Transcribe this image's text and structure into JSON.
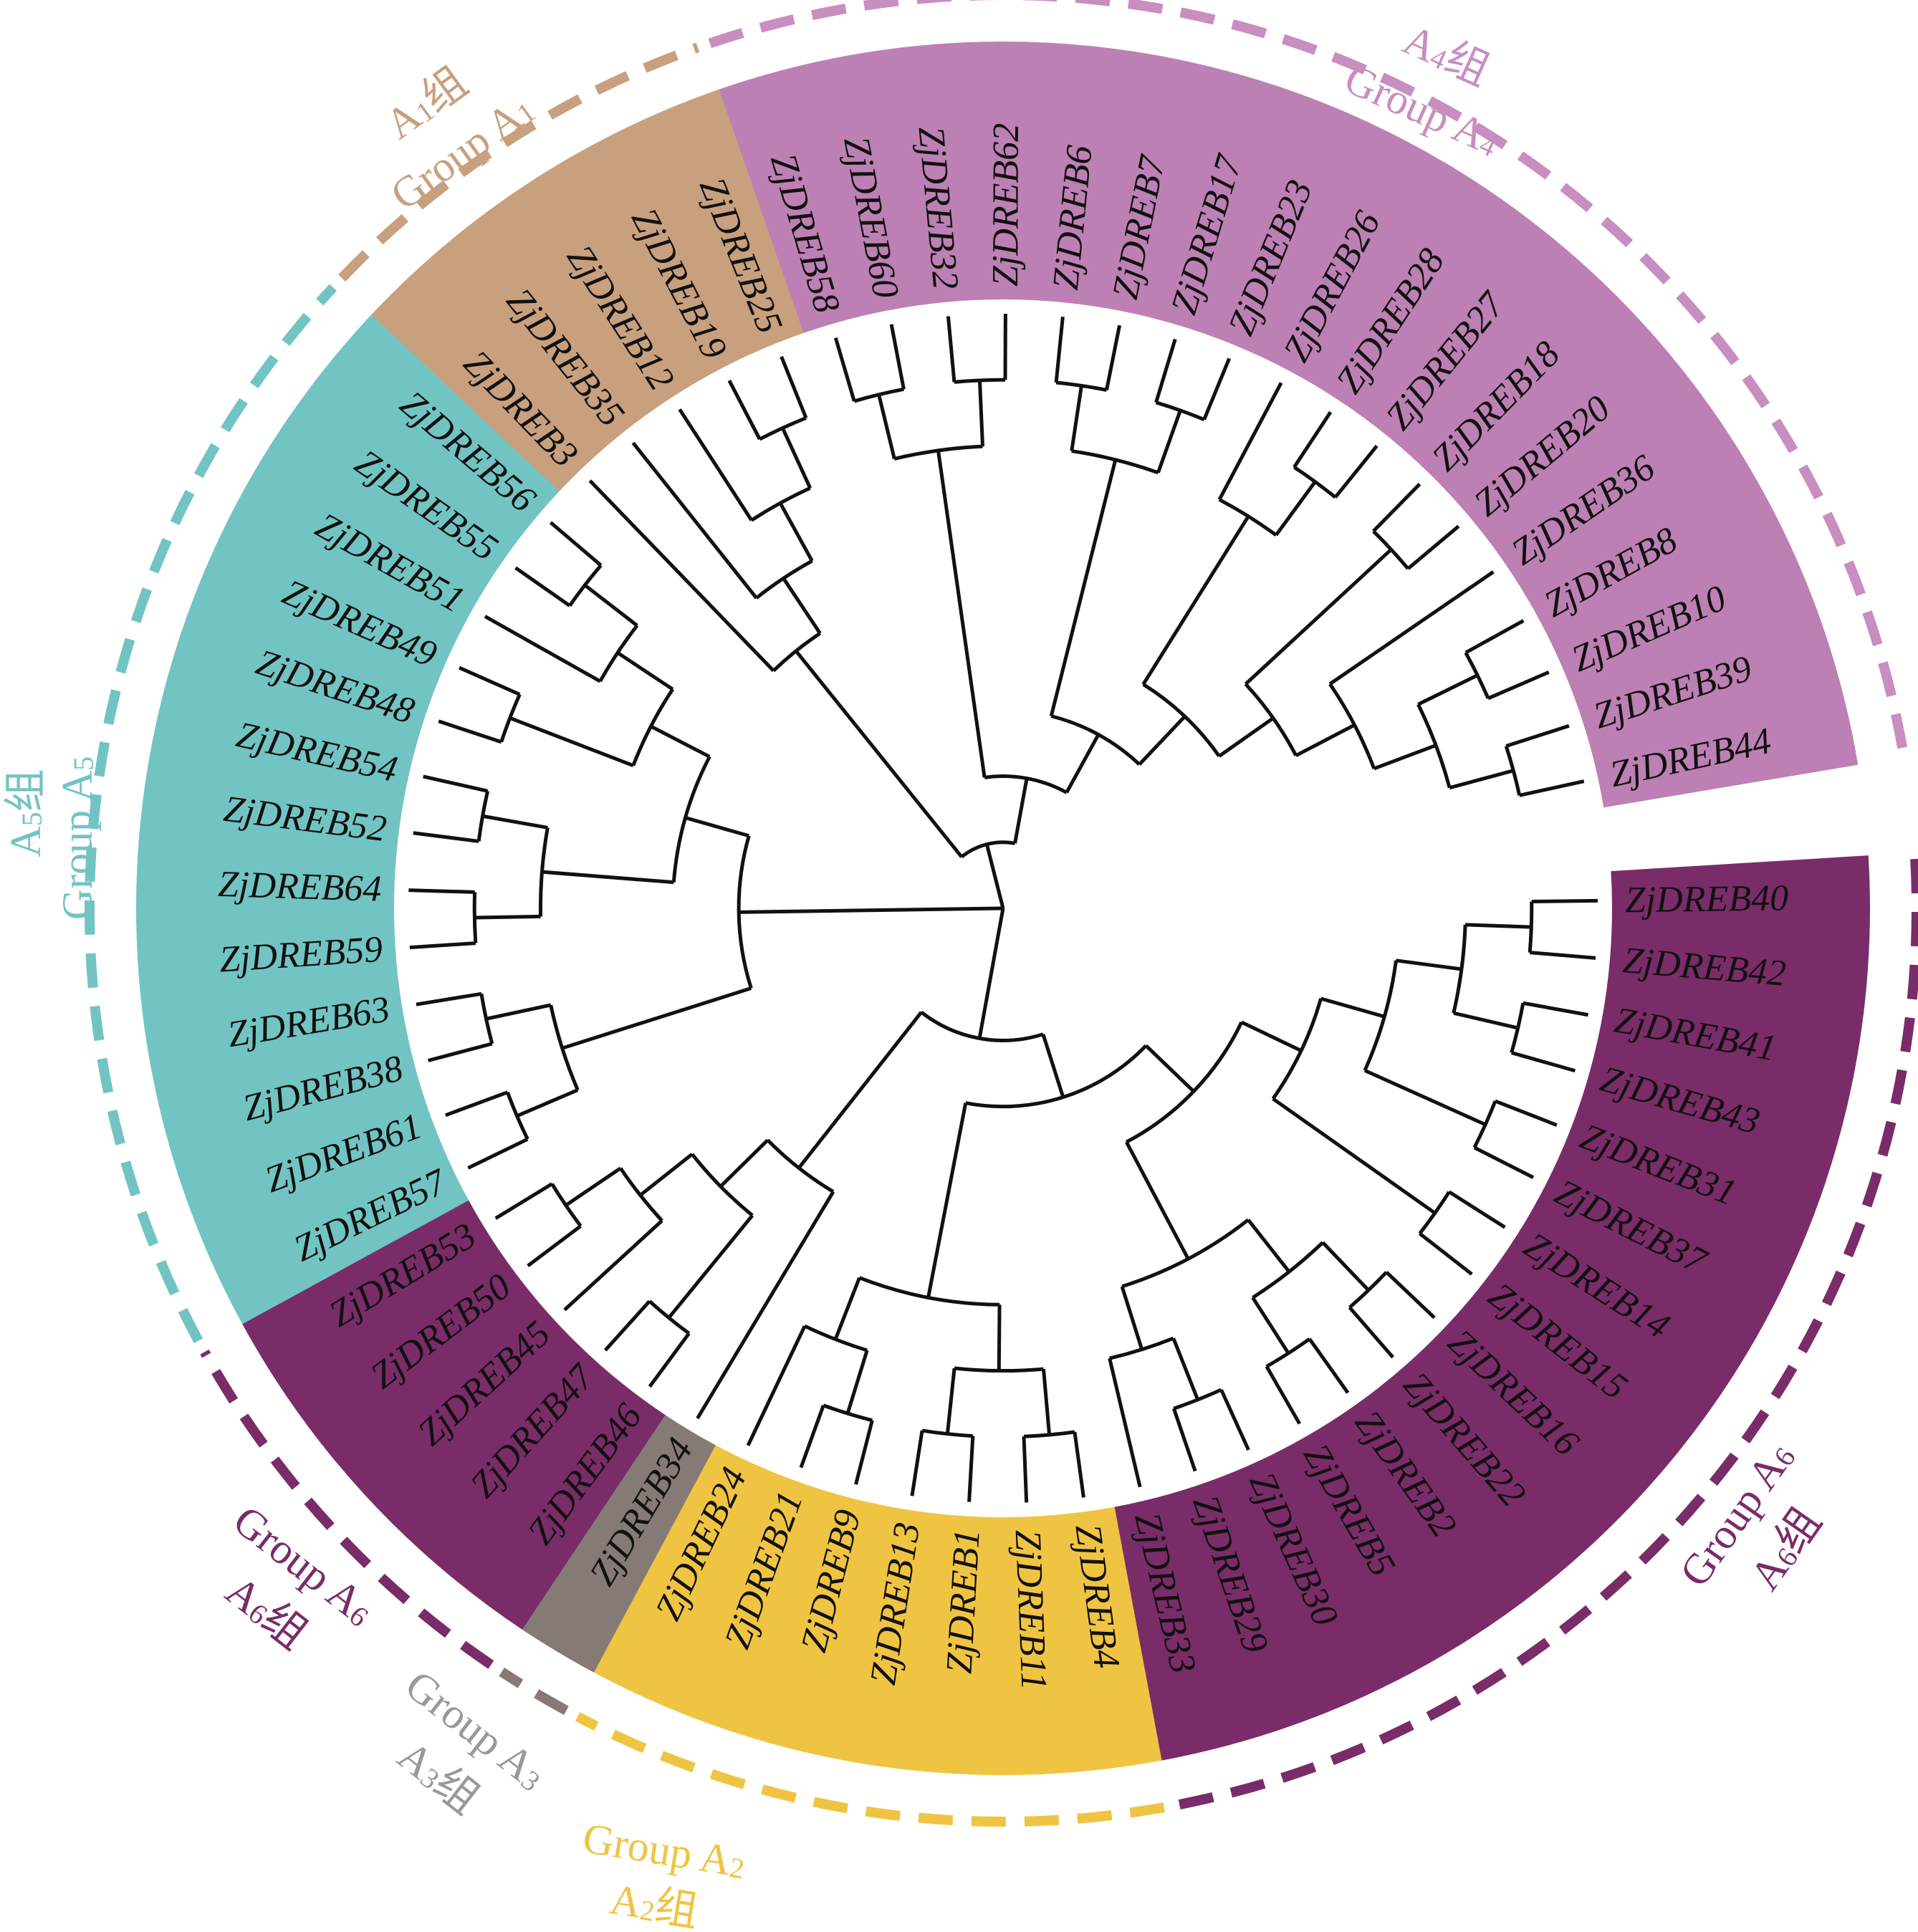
{
  "groups": {
    "A1": {
      "en": "Group A",
      "cn_prefix": "A",
      "num": "1",
      "cn_suffix": "组",
      "band": "#c8a07e",
      "dash": "#c8a07e",
      "text": "#c8a07e"
    },
    "A2": {
      "en": "Group A",
      "cn_prefix": "A",
      "num": "2",
      "cn_suffix": "组",
      "band": "#f0c443",
      "dash": "#f0c443",
      "text": "#f0c443"
    },
    "A3": {
      "en": "Group A",
      "cn_prefix": "A",
      "num": "3",
      "cn_suffix": "组",
      "band": "#857a75",
      "dash": "#857a75",
      "text": "#999999"
    },
    "A4": {
      "en": "Group A",
      "cn_prefix": "A",
      "num": "4",
      "cn_suffix": "组",
      "band": "#bd80b4",
      "dash": "#c88ec0",
      "text": "#c88ec0"
    },
    "A5": {
      "en": "Group A",
      "cn_prefix": "A",
      "num": "5",
      "cn_suffix": "组",
      "band": "#72c4c3",
      "dash": "#72c4c3",
      "text": "#72c4c3"
    },
    "A6": {
      "en": "Group A",
      "cn_prefix": "A",
      "num": "6",
      "cn_suffix": "组",
      "band": "#7a2c69",
      "dash": "#7a2c69",
      "text": "#7a2c69"
    }
  },
  "leaves": [
    {
      "name": "ZjDREB40",
      "group": "A6"
    },
    {
      "name": "ZjDREB42",
      "group": "A6"
    },
    {
      "name": "ZjDREB41",
      "group": "A6"
    },
    {
      "name": "ZjDREB43",
      "group": "A6"
    },
    {
      "name": "ZjDREB31",
      "group": "A6"
    },
    {
      "name": "ZjDREB37",
      "group": "A6"
    },
    {
      "name": "ZjDREB14",
      "group": "A6"
    },
    {
      "name": "ZjDREB15",
      "group": "A6"
    },
    {
      "name": "ZjDREB16",
      "group": "A6"
    },
    {
      "name": "ZjDREB22",
      "group": "A6"
    },
    {
      "name": "ZjDREB2",
      "group": "A6"
    },
    {
      "name": "ZjDREB5",
      "group": "A6"
    },
    {
      "name": "ZjDREB30",
      "group": "A6"
    },
    {
      "name": "ZjDREB29",
      "group": "A6"
    },
    {
      "name": "ZjDREB33",
      "group": "A6"
    },
    {
      "name": "ZjDREB4",
      "group": "A2"
    },
    {
      "name": "ZjDREB11",
      "group": "A2"
    },
    {
      "name": "ZjDREB1",
      "group": "A2"
    },
    {
      "name": "ZjDREB13",
      "group": "A2"
    },
    {
      "name": "ZjDREB9",
      "group": "A2"
    },
    {
      "name": "ZjDREB21",
      "group": "A2"
    },
    {
      "name": "ZjDREB24",
      "group": "A2"
    },
    {
      "name": "ZjDREB34",
      "group": "A3"
    },
    {
      "name": "ZjDREB46",
      "group": "A6"
    },
    {
      "name": "ZjDREB47",
      "group": "A6"
    },
    {
      "name": "ZjDREB45",
      "group": "A6"
    },
    {
      "name": "ZjDREB50",
      "group": "A6"
    },
    {
      "name": "ZjDREB53",
      "group": "A6"
    },
    {
      "name": "ZjDREB57",
      "group": "A5"
    },
    {
      "name": "ZjDREB61",
      "group": "A5"
    },
    {
      "name": "ZjDREB38",
      "group": "A5"
    },
    {
      "name": "ZjDREB63",
      "group": "A5"
    },
    {
      "name": "ZjDREB59",
      "group": "A5"
    },
    {
      "name": "ZjDREB64",
      "group": "A5"
    },
    {
      "name": "ZjDREB52",
      "group": "A5"
    },
    {
      "name": "ZjDREB54",
      "group": "A5"
    },
    {
      "name": "ZjDREB48",
      "group": "A5"
    },
    {
      "name": "ZjDREB49",
      "group": "A5"
    },
    {
      "name": "ZjDREB51",
      "group": "A5"
    },
    {
      "name": "ZjDREB55",
      "group": "A5"
    },
    {
      "name": "ZjDREB56",
      "group": "A5"
    },
    {
      "name": "ZjDREB3",
      "group": "A1"
    },
    {
      "name": "ZjDREB35",
      "group": "A1"
    },
    {
      "name": "ZjDREB12",
      "group": "A1"
    },
    {
      "name": "ZjDREB19",
      "group": "A1"
    },
    {
      "name": "ZjDREB25",
      "group": "A1"
    },
    {
      "name": "ZjDREB58",
      "group": "A4"
    },
    {
      "name": "ZjDREB60",
      "group": "A4"
    },
    {
      "name": "ZjDREB32",
      "group": "A4"
    },
    {
      "name": "ZjDREB62",
      "group": "A4"
    },
    {
      "name": "ZjDREB6",
      "group": "A4"
    },
    {
      "name": "ZjDREB7",
      "group": "A4"
    },
    {
      "name": "ZjDREB17",
      "group": "A4"
    },
    {
      "name": "ZjDREB23",
      "group": "A4"
    },
    {
      "name": "ZjDREB26",
      "group": "A4"
    },
    {
      "name": "ZjDREB28",
      "group": "A4"
    },
    {
      "name": "ZjDREB27",
      "group": "A4"
    },
    {
      "name": "ZjDREB18",
      "group": "A4"
    },
    {
      "name": "ZjDREB20",
      "group": "A4"
    },
    {
      "name": "ZjDREB36",
      "group": "A4"
    },
    {
      "name": "ZjDREB8",
      "group": "A4"
    },
    {
      "name": "ZjDREB10",
      "group": "A4"
    },
    {
      "name": "ZjDREB39",
      "group": "A4"
    },
    {
      "name": "ZjDREB44",
      "group": "A4"
    }
  ],
  "tree": [
    [
      [
        [
          [
            [
              [
                [
                  0,
                  1
                ],
                [
                  2,
                  3
                ]
              ],
              [
                4,
                5
              ]
            ],
            [
              6,
              7
            ]
          ],
          [
            [
              [
                8,
                9
              ],
              [
                10,
                11
              ]
            ],
            [
              [
                12,
                13
              ],
              14
            ]
          ]
        ],
        [
          [
            [
              15,
              16
            ],
            [
              17,
              18
            ]
          ],
          [
            [
              19,
              20
            ],
            21
          ]
        ]
      ],
      [
        22,
        [
          [
            23,
            24
          ],
          [
            25,
            [
              26,
              27
            ]
          ]
        ]
      ]
    ],
    [
      [
        [
          28,
          29
        ],
        [
          30,
          31
        ]
      ],
      [
        [
          [
            32,
            33
          ],
          [
            34,
            35
          ]
        ],
        [
          [
            36,
            37
          ],
          [
            38,
            [
              39,
              40
            ]
          ]
        ]
      ]
    ],
    [
      [
        41,
        [
          42,
          [
            43,
            [
              44,
              45
            ]
          ]
        ]
      ],
      [
        [
          [
            46,
            47
          ],
          [
            48,
            49
          ]
        ],
        [
          [
            [
              50,
              51
            ],
            [
              52,
              53
            ]
          ],
          [
            [
              54,
              [
                55,
                56
              ]
            ],
            [
              [
                57,
                58
              ],
              [
                59,
                [
                  [
                    60,
                    61
                  ],
                  [
                    62,
                    63
                  ]
                ]
              ]
            ]
          ]
        ]
      ]
    ]
  ],
  "dashed_segments": [
    {
      "group": "A6",
      "from": 0,
      "to": 14
    },
    {
      "group": "A2",
      "from": 15,
      "to": 21
    },
    {
      "group": "A3",
      "from": 22,
      "to": 22
    },
    {
      "group": "A6",
      "from": 23,
      "to": 27
    },
    {
      "group": "A5",
      "from": 28,
      "to": 40
    },
    {
      "group": "A1",
      "from": 41,
      "to": 45
    },
    {
      "group": "A4",
      "from": 46,
      "to": 63
    }
  ]
}
